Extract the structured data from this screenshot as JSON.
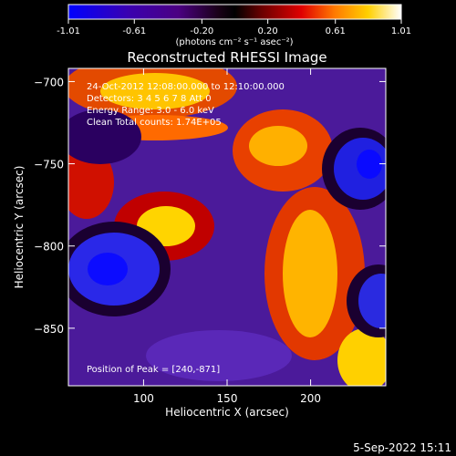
{
  "colorbar": {
    "ticks": [
      "-1.01",
      "-0.61",
      "-0.20",
      "0.20",
      "0.61",
      "1.01"
    ],
    "tick_values": [
      -1.01,
      -0.61,
      -0.2,
      0.2,
      0.61,
      1.01
    ],
    "range": [
      -1.01,
      1.01
    ],
    "units": "(photons cm⁻² s⁻¹ asec⁻²)",
    "colors": [
      "#0000ff",
      "#4b0082",
      "#000000",
      "#800000",
      "#ff0000",
      "#ff8c00",
      "#ffd700",
      "#ffffff"
    ]
  },
  "chart_data": {
    "type": "heatmap",
    "title": "Reconstructed RHESSI Image",
    "xlabel": "Heliocentric X (arcsec)",
    "ylabel": "Heliocentric Y (arcsec)",
    "xlim": [
      55,
      245
    ],
    "ylim": [
      -885,
      -692
    ],
    "x_ticks": [
      100,
      150,
      200
    ],
    "y_ticks": [
      -700,
      -750,
      -800,
      -850
    ],
    "x_tick_labels": [
      "100",
      "150",
      "200"
    ],
    "y_tick_labels": [
      "−700",
      "−750",
      "−800",
      "−850"
    ],
    "info_lines": [
      "24-Oct-2012 12:08:00.000 to 12:10:00.000",
      "Detectors: 3 4 5 6 7 8  Att 0",
      "Energy Range: 3.0 - 6.0 keV",
      "Clean    Total counts: 1.74E+05"
    ],
    "peak_text": "Position of Peak = [240,-871]",
    "peak_position": [
      240,
      -871
    ],
    "grid": false
  },
  "footer": {
    "date": "5-Sep-2022 15:11"
  }
}
